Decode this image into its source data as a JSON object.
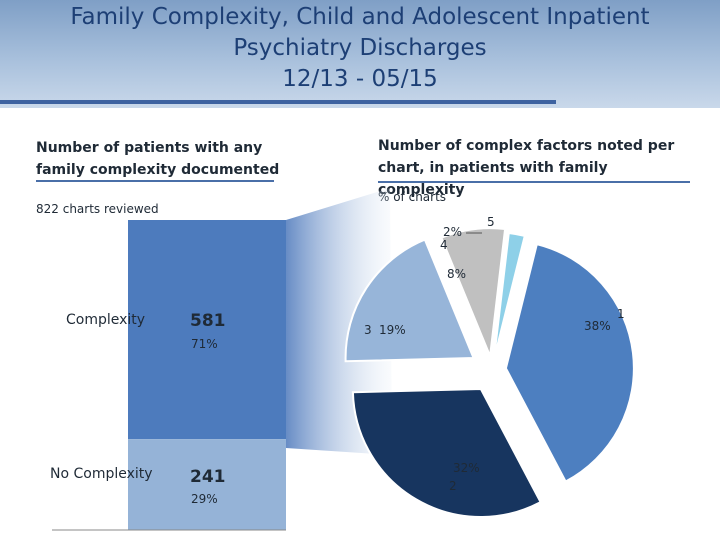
{
  "title": {
    "line1": "Family Complexity, Child and Adolescent Inpatient",
    "line2": "Psychiatry Discharges",
    "line3": "12/13 - 05/15"
  },
  "left_panel": {
    "heading": "Number of patients with any family complexity documented",
    "note": "822 charts reviewed"
  },
  "right_panel": {
    "heading": "Number of complex factors noted per chart, in patients with family complexity",
    "note": "% of charts"
  },
  "colors": {
    "complexity": "#4d7bbd",
    "no_complexity": "#95b3d7",
    "connector": "#5f86c2",
    "slice_1": "#4d7fc0",
    "slice_2": "#17355f",
    "slice_3": "#97b5d9",
    "slice_4": "#c0c0c0",
    "slice_5": "#8ed0e8"
  },
  "chart_data": [
    {
      "type": "bar",
      "stacked": true,
      "categories": [
        "Complexity",
        "No Complexity"
      ],
      "values": [
        581,
        241
      ],
      "value_labels": [
        "581",
        "241"
      ],
      "percent_labels": [
        "71%",
        "29%"
      ]
    },
    {
      "type": "pie",
      "slices": [
        {
          "factors": "1",
          "value": 38,
          "label": "38%"
        },
        {
          "factors": "2",
          "value": 32,
          "label": "32%"
        },
        {
          "factors": "3",
          "value": 19,
          "label": "19%"
        },
        {
          "factors": "4",
          "value": 8,
          "label": "8%"
        },
        {
          "factors": "5",
          "value": 2,
          "label": "2%"
        }
      ]
    }
  ]
}
